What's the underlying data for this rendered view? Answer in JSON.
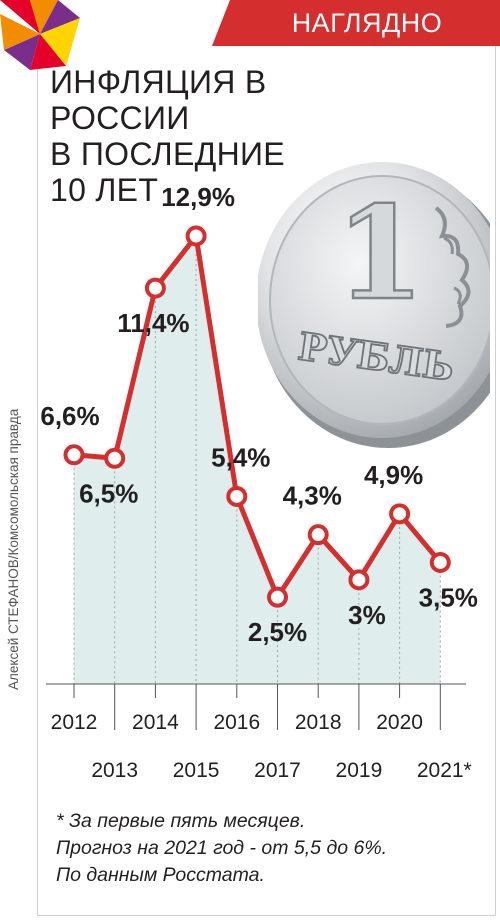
{
  "badge": {
    "label": "НАГЛЯДНО",
    "color": "#d42e2e"
  },
  "title_lines": [
    "ИНФЛЯЦИЯ В РОССИИ",
    "В ПОСЛЕДНИЕ",
    "10 ЛЕТ"
  ],
  "credit": "Алексей СТЕФАНОВ/Комсомольская правда",
  "coin": {
    "numeral": "1",
    "word": "РУБЛЬ"
  },
  "chart_data": {
    "type": "line",
    "categories": [
      "2012",
      "2013",
      "2014",
      "2015",
      "2016",
      "2017",
      "2018",
      "2019",
      "2020",
      "2021*"
    ],
    "values": [
      6.6,
      6.5,
      11.4,
      12.9,
      5.4,
      2.5,
      4.3,
      3.0,
      4.9,
      3.5
    ],
    "value_labels": [
      "6,6%",
      "6,5%",
      "11,4%",
      "12,9%",
      "5,4%",
      "2,5%",
      "4,3%",
      "3%",
      "4,9%",
      "3,5%"
    ],
    "unit": "%",
    "ylim": [
      0,
      15
    ],
    "line_color": "#d42e2e",
    "fill_color": "#dfeeec",
    "grid": false,
    "xlabel": "",
    "ylabel": ""
  },
  "footnote_lines": [
    "* За первые пять месяцев.",
    "Прогноз на 2021 год - от 5,5 до 6%.",
    "По данным Росстата."
  ]
}
